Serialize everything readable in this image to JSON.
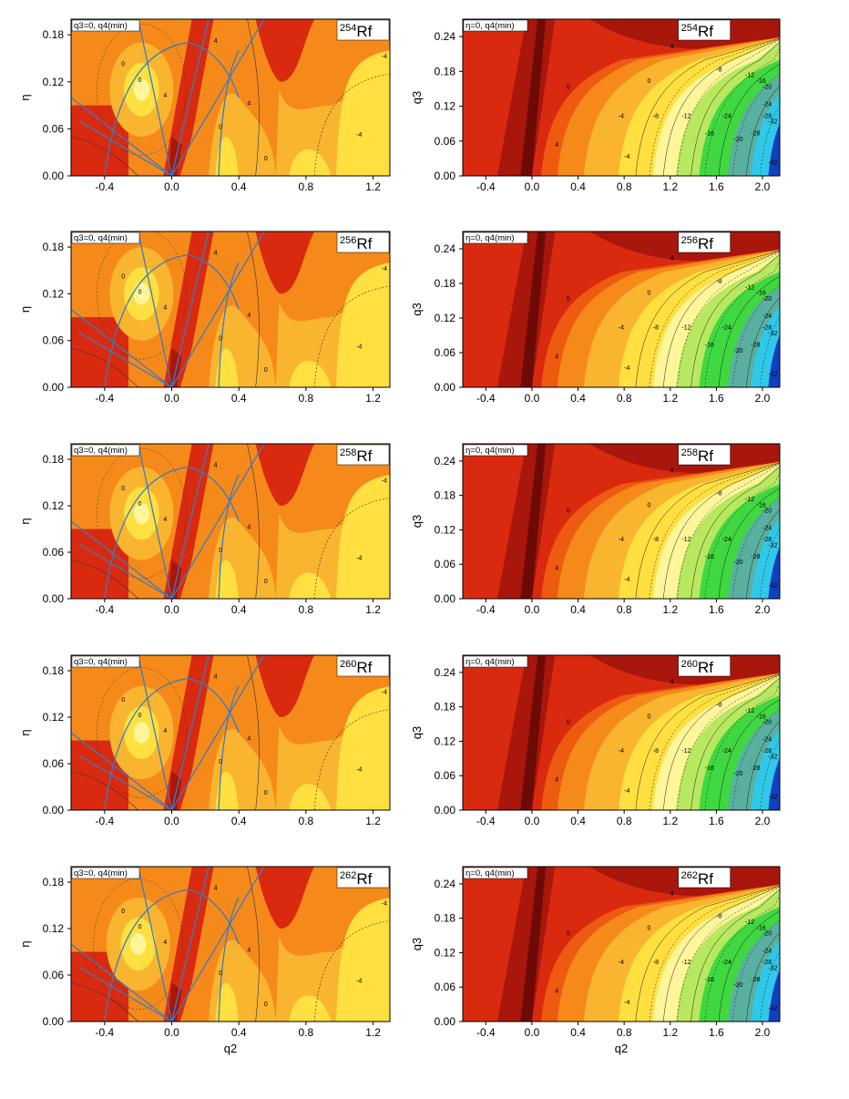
{
  "figure": {
    "panels": [
      {
        "id": "254-left",
        "nucleus_mass": "254",
        "nucleus_symbol": "Rf",
        "condition": "q3=0, q4(min)",
        "xlabel": "",
        "ylabel": "η"
      },
      {
        "id": "254-right",
        "nucleus_mass": "254",
        "nucleus_symbol": "Rf",
        "condition": "η=0, q4(min)",
        "xlabel": "",
        "ylabel": "q3"
      },
      {
        "id": "256-left",
        "nucleus_mass": "256",
        "nucleus_symbol": "Rf",
        "condition": "q3=0, q4(min)",
        "xlabel": "",
        "ylabel": "η"
      },
      {
        "id": "256-right",
        "nucleus_mass": "256",
        "nucleus_symbol": "Rf",
        "condition": "η=0, q4(min)",
        "xlabel": "",
        "ylabel": "q3"
      },
      {
        "id": "258-left",
        "nucleus_mass": "258",
        "nucleus_symbol": "Rf",
        "condition": "q3=0, q4(min)",
        "xlabel": "",
        "ylabel": "η"
      },
      {
        "id": "258-right",
        "nucleus_mass": "258",
        "nucleus_symbol": "Rf",
        "condition": "η=0, q4(min)",
        "xlabel": "",
        "ylabel": "q3"
      },
      {
        "id": "260-left",
        "nucleus_mass": "260",
        "nucleus_symbol": "Rf",
        "condition": "q3=0, q4(min)",
        "xlabel": "",
        "ylabel": "η"
      },
      {
        "id": "260-right",
        "nucleus_mass": "260",
        "nucleus_symbol": "Rf",
        "condition": "η=0, q4(min)",
        "xlabel": "",
        "ylabel": "q3"
      },
      {
        "id": "262-left",
        "nucleus_mass": "262",
        "nucleus_symbol": "Rf",
        "condition": "q3=0, q4(min)",
        "xlabel": "q2",
        "ylabel": "η"
      },
      {
        "id": "262-right",
        "nucleus_mass": "262",
        "nucleus_symbol": "Rf",
        "condition": "η=0, q4(min)",
        "xlabel": "q2",
        "ylabel": "q3"
      }
    ]
  },
  "chart_data": [
    {
      "type": "heatmap",
      "panel": "254Rf (q2, η)",
      "xlim": [
        -0.6,
        1.3
      ],
      "ylim": [
        0,
        0.2
      ],
      "x_ticks": [
        "-0.4",
        "0.0",
        "0.4",
        "0.8",
        "1.2"
      ],
      "y_ticks": [
        "0.00",
        "0.06",
        "0.12",
        "0.18"
      ],
      "contour_labels": [
        "0",
        "4",
        "0",
        "4",
        "0",
        "4",
        "-4",
        "0",
        "-4"
      ],
      "features": {
        "minimum_q2": -0.18,
        "minimum_eta": 0.11,
        "ridge_q2": 0.0
      }
    },
    {
      "type": "heatmap",
      "panel": "254Rf (q2, q3)",
      "xlim": [
        -0.6,
        2.15
      ],
      "ylim": [
        0,
        0.27
      ],
      "x_ticks": [
        "-0.4",
        "0.0",
        "0.4",
        "0.8",
        "1.2",
        "1.6",
        "2.0"
      ],
      "y_ticks": [
        "0.00",
        "0.06",
        "0.12",
        "0.18",
        "0.24"
      ],
      "contour_labels": [
        "0",
        "4",
        "-4",
        "-8",
        "-12",
        "-16",
        "-20",
        "-24",
        "-28",
        "-32",
        "-8",
        "-12",
        "-16",
        "-20",
        "-24",
        "-28",
        "-32",
        "4",
        "0",
        "-4"
      ],
      "features": {
        "deep_valley_q2": 2.1,
        "min_value": -32
      }
    },
    {
      "type": "heatmap",
      "panel": "256Rf (q2, η)",
      "xlim": [
        -0.6,
        1.3
      ],
      "ylim": [
        0,
        0.2
      ],
      "x_ticks": [
        "-0.4",
        "0.0",
        "0.4",
        "0.8",
        "1.2"
      ],
      "y_ticks": [
        "0.00",
        "0.06",
        "0.12",
        "0.18"
      ],
      "contour_labels": [
        "0",
        "4",
        "0",
        "4",
        "0",
        "4",
        "-4",
        "0",
        "-4"
      ],
      "features": {
        "minimum_q2": -0.18,
        "minimum_eta": 0.12,
        "ridge_q2": 0.0
      }
    },
    {
      "type": "heatmap",
      "panel": "256Rf (q2, q3)",
      "xlim": [
        -0.6,
        2.15
      ],
      "ylim": [
        0,
        0.27
      ],
      "x_ticks": [
        "-0.4",
        "0.0",
        "0.4",
        "0.8",
        "1.2",
        "1.6",
        "2.0"
      ],
      "y_ticks": [
        "0.00",
        "0.06",
        "0.12",
        "0.18",
        "0.24"
      ],
      "contour_labels": [
        "0",
        "4",
        "-4",
        "-8",
        "-12",
        "-16",
        "-20",
        "-24",
        "-28",
        "-32",
        "-8",
        "-12",
        "-16",
        "-20",
        "-24",
        "-28",
        "-32",
        "4",
        "0",
        "-4"
      ],
      "features": {
        "deep_valley_q2": 2.1,
        "min_value": -32
      }
    },
    {
      "type": "heatmap",
      "panel": "258Rf (q2, η)",
      "xlim": [
        -0.6,
        1.3
      ],
      "ylim": [
        0,
        0.2
      ],
      "x_ticks": [
        "-0.4",
        "0.0",
        "0.4",
        "0.8",
        "1.2"
      ],
      "y_ticks": [
        "0.00",
        "0.06",
        "0.12",
        "0.18"
      ],
      "contour_labels": [
        "0",
        "4",
        "0",
        "4",
        "0",
        "4",
        "-4",
        "0",
        "-4"
      ],
      "features": {
        "minimum_q2": -0.18,
        "minimum_eta": 0.11,
        "ridge_q2": 0.0
      }
    },
    {
      "type": "heatmap",
      "panel": "258Rf (q2, q3)",
      "xlim": [
        -0.6,
        2.15
      ],
      "ylim": [
        0,
        0.27
      ],
      "x_ticks": [
        "-0.4",
        "0.0",
        "0.4",
        "0.8",
        "1.2",
        "1.6",
        "2.0"
      ],
      "y_ticks": [
        "0.00",
        "0.06",
        "0.12",
        "0.18",
        "0.24"
      ],
      "contour_labels": [
        "0",
        "4",
        "-4",
        "-8",
        "-12",
        "-16",
        "-20",
        "-24",
        "-28",
        "-32",
        "-8",
        "-12",
        "-16",
        "-20",
        "-24",
        "-28",
        "-32",
        "4",
        "0",
        "-4"
      ],
      "features": {
        "deep_valley_q2": 2.1,
        "min_value": -32
      }
    },
    {
      "type": "heatmap",
      "panel": "260Rf (q2, η)",
      "xlim": [
        -0.6,
        1.3
      ],
      "ylim": [
        0,
        0.2
      ],
      "x_ticks": [
        "-0.4",
        "0.0",
        "0.4",
        "0.8",
        "1.2"
      ],
      "y_ticks": [
        "0.00",
        "0.06",
        "0.12",
        "0.18"
      ],
      "contour_labels": [
        "0",
        "4",
        "0",
        "4",
        "0",
        "4",
        "-4",
        "0",
        "-4"
      ],
      "features": {
        "minimum_q2": -0.18,
        "minimum_eta": 0.1,
        "ridge_q2": 0.0
      }
    },
    {
      "type": "heatmap",
      "panel": "260Rf (q2, q3)",
      "xlim": [
        -0.6,
        2.15
      ],
      "ylim": [
        0,
        0.27
      ],
      "x_ticks": [
        "-0.4",
        "0.0",
        "0.4",
        "0.8",
        "1.2",
        "1.6",
        "2.0"
      ],
      "y_ticks": [
        "0.00",
        "0.06",
        "0.12",
        "0.18",
        "0.24"
      ],
      "contour_labels": [
        "0",
        "4",
        "-4",
        "-8",
        "-12",
        "-16",
        "-20",
        "-24",
        "-28",
        "-32",
        "-8",
        "-12",
        "-16",
        "-20",
        "-24",
        "-28",
        "-32",
        "4",
        "0",
        "-4"
      ],
      "features": {
        "deep_valley_q2": 2.1,
        "min_value": -32
      }
    },
    {
      "type": "heatmap",
      "panel": "262Rf (q2, η)",
      "xlim": [
        -0.6,
        1.3
      ],
      "ylim": [
        0,
        0.2
      ],
      "x_ticks": [
        "-0.4",
        "0.0",
        "0.4",
        "0.8",
        "1.2"
      ],
      "y_ticks": [
        "0.00",
        "0.06",
        "0.12",
        "0.18"
      ],
      "contour_labels": [
        "0",
        "4",
        "0",
        "4",
        "0",
        "4",
        "-4",
        "0",
        "-4"
      ],
      "features": {
        "minimum_q2": -0.2,
        "minimum_eta": 0.1,
        "ridge_q2": 0.0
      }
    },
    {
      "type": "heatmap",
      "panel": "262Rf (q2, q3)",
      "xlim": [
        -0.6,
        2.15
      ],
      "ylim": [
        0,
        0.27
      ],
      "x_ticks": [
        "-0.4",
        "0.0",
        "0.4",
        "0.8",
        "1.2",
        "1.6",
        "2.0"
      ],
      "y_ticks": [
        "0.00",
        "0.06",
        "0.12",
        "0.18",
        "0.24"
      ],
      "contour_labels": [
        "0",
        "4",
        "-4",
        "-8",
        "-12",
        "-16",
        "-20",
        "-24",
        "-28",
        "-32",
        "-8",
        "-12",
        "-16",
        "-20",
        "-24",
        "-28",
        "-32",
        "4",
        "0",
        "-4"
      ],
      "features": {
        "deep_valley_q2": 2.1,
        "min_value": -32
      }
    }
  ],
  "colors": {
    "darkest_red": "#6e0a06",
    "dark_red": "#a8160c",
    "red": "#d92a10",
    "orange_red": "#ee5a10",
    "orange": "#f58a1a",
    "light_orange": "#f9b530",
    "yellow": "#ffe040",
    "pale_yellow": "#fff59a",
    "light_green": "#b8e860",
    "green": "#40d840",
    "teal": "#5ab0a0",
    "cyan": "#30c8e8",
    "blue": "#1040c0",
    "blue_lines": "#3b7bbf"
  }
}
